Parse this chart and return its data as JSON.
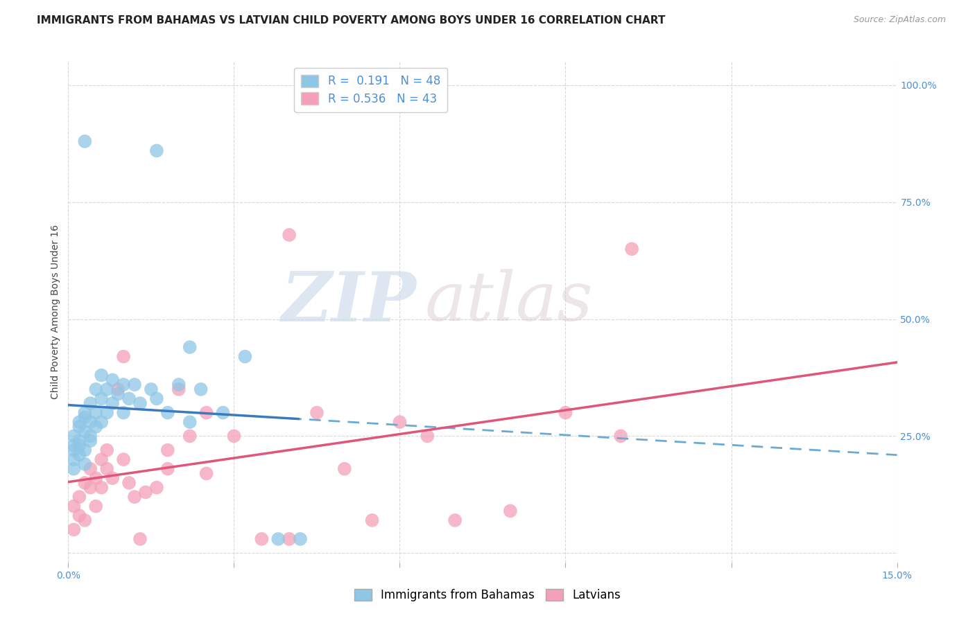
{
  "title": "IMMIGRANTS FROM BAHAMAS VS LATVIAN CHILD POVERTY AMONG BOYS UNDER 16 CORRELATION CHART",
  "source": "Source: ZipAtlas.com",
  "ylabel": "Child Poverty Among Boys Under 16",
  "xlim": [
    0.0,
    0.15
  ],
  "ylim": [
    -0.02,
    1.05
  ],
  "yticks_right": [
    0.0,
    0.25,
    0.5,
    0.75,
    1.0
  ],
  "ytick_labels_right": [
    "",
    "25.0%",
    "50.0%",
    "75.0%",
    "100.0%"
  ],
  "blue_color": "#8ec6e6",
  "pink_color": "#f4a0b8",
  "blue_line_color": "#3a7abf",
  "pink_line_color": "#e0557a",
  "blue_line_dashed_color": "#6aaad4",
  "R_blue": 0.191,
  "N_blue": 48,
  "R_pink": 0.536,
  "N_pink": 43,
  "blue_scatter_x": [
    0.001,
    0.001,
    0.001,
    0.001,
    0.001,
    0.002,
    0.002,
    0.002,
    0.002,
    0.002,
    0.003,
    0.003,
    0.003,
    0.003,
    0.003,
    0.004,
    0.004,
    0.004,
    0.004,
    0.005,
    0.005,
    0.005,
    0.006,
    0.006,
    0.006,
    0.007,
    0.007,
    0.008,
    0.008,
    0.009,
    0.01,
    0.01,
    0.011,
    0.012,
    0.013,
    0.015,
    0.016,
    0.018,
    0.02,
    0.022,
    0.024,
    0.028,
    0.032,
    0.038,
    0.042,
    0.022,
    0.016,
    0.003
  ],
  "blue_scatter_y": [
    0.23,
    0.22,
    0.2,
    0.18,
    0.25,
    0.27,
    0.24,
    0.21,
    0.28,
    0.23,
    0.3,
    0.26,
    0.22,
    0.19,
    0.29,
    0.32,
    0.25,
    0.28,
    0.24,
    0.35,
    0.3,
    0.27,
    0.33,
    0.28,
    0.38,
    0.35,
    0.3,
    0.37,
    0.32,
    0.34,
    0.36,
    0.3,
    0.33,
    0.36,
    0.32,
    0.35,
    0.33,
    0.3,
    0.36,
    0.28,
    0.35,
    0.3,
    0.42,
    0.03,
    0.03,
    0.44,
    0.86,
    0.88
  ],
  "pink_scatter_x": [
    0.001,
    0.001,
    0.002,
    0.002,
    0.003,
    0.003,
    0.004,
    0.004,
    0.005,
    0.005,
    0.006,
    0.006,
    0.007,
    0.007,
    0.008,
    0.009,
    0.01,
    0.011,
    0.012,
    0.013,
    0.014,
    0.016,
    0.018,
    0.02,
    0.022,
    0.025,
    0.03,
    0.035,
    0.04,
    0.045,
    0.05,
    0.055,
    0.06,
    0.065,
    0.07,
    0.08,
    0.09,
    0.1,
    0.102,
    0.025,
    0.018,
    0.01,
    0.04
  ],
  "pink_scatter_y": [
    0.1,
    0.05,
    0.12,
    0.08,
    0.15,
    0.07,
    0.14,
    0.18,
    0.16,
    0.1,
    0.2,
    0.14,
    0.22,
    0.18,
    0.16,
    0.35,
    0.2,
    0.15,
    0.12,
    0.03,
    0.13,
    0.14,
    0.18,
    0.35,
    0.25,
    0.17,
    0.25,
    0.03,
    0.03,
    0.3,
    0.18,
    0.07,
    0.28,
    0.25,
    0.07,
    0.09,
    0.3,
    0.25,
    0.65,
    0.3,
    0.22,
    0.42,
    0.68
  ],
  "watermark_zip": "ZIP",
  "watermark_atlas": "atlas",
  "background_color": "#ffffff",
  "grid_color": "#d8d8d8",
  "title_fontsize": 11,
  "axis_label_fontsize": 10,
  "tick_fontsize": 10,
  "legend_fontsize": 12
}
